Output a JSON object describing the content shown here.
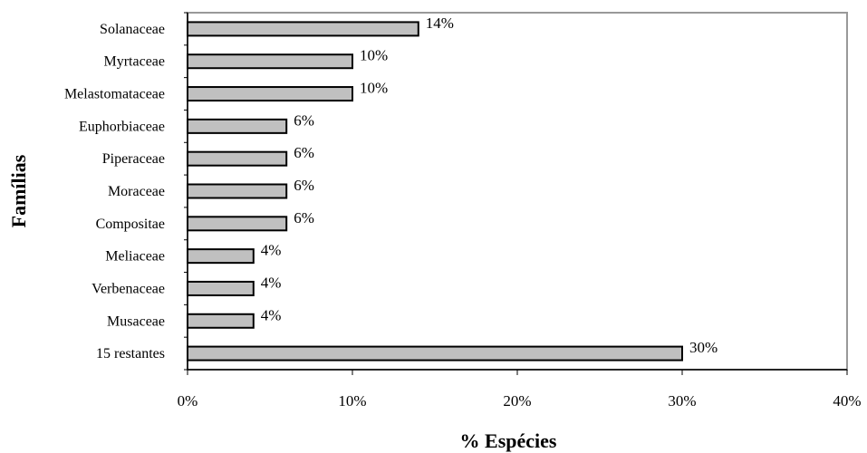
{
  "chart_data": {
    "type": "bar",
    "orientation": "horizontal",
    "categories": [
      "Solanaceae",
      "Myrtaceae",
      "Melastomataceae",
      "Euphorbiaceae",
      "Piperaceae",
      "Moraceae",
      "Compositae",
      "Meliaceae",
      "Verbenaceae",
      "Musaceae",
      "15 restantes"
    ],
    "values": [
      14,
      10,
      10,
      6,
      6,
      6,
      6,
      4,
      4,
      4,
      30
    ],
    "data_labels": [
      "14%",
      "10%",
      "10%",
      "6%",
      "6%",
      "6%",
      "6%",
      "4%",
      "4%",
      "4%",
      "30%"
    ],
    "xlim": [
      0,
      40
    ],
    "xticks": [
      0,
      10,
      20,
      30,
      40
    ],
    "xtick_labels": [
      "0%",
      "10%",
      "20%",
      "30%",
      "40%"
    ],
    "xlabel": "% Espécies",
    "ylabel": "Famílias",
    "grid": false,
    "legend": "none",
    "colors": {
      "bar_fill": "#c0c0c0",
      "bar_stroke": "#000000",
      "plot_border": "#999999",
      "axis": "#000000"
    }
  }
}
